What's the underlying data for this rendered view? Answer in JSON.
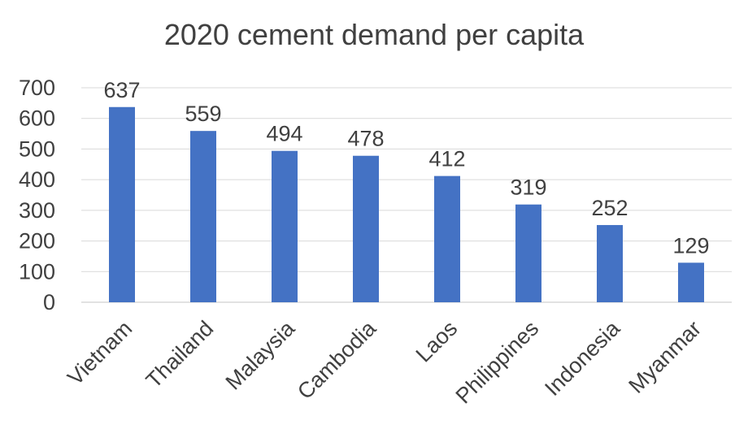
{
  "chart_data": {
    "type": "bar",
    "title": "2020 cement demand per capita",
    "xlabel": "",
    "ylabel": "",
    "categories": [
      "Vietnam",
      "Thailand",
      "Malaysia",
      "Cambodia",
      "Laos",
      "Philippines",
      "Indonesia",
      "Myanmar"
    ],
    "values": [
      637,
      559,
      494,
      478,
      412,
      319,
      252,
      129
    ],
    "ylim": [
      0,
      700
    ],
    "yticks": [
      0,
      100,
      200,
      300,
      400,
      500,
      600,
      700
    ],
    "grid": true,
    "legend": "none",
    "bar_color": "#4472C4",
    "grid_color": "#D9D9D9",
    "text_color": "#404040"
  }
}
